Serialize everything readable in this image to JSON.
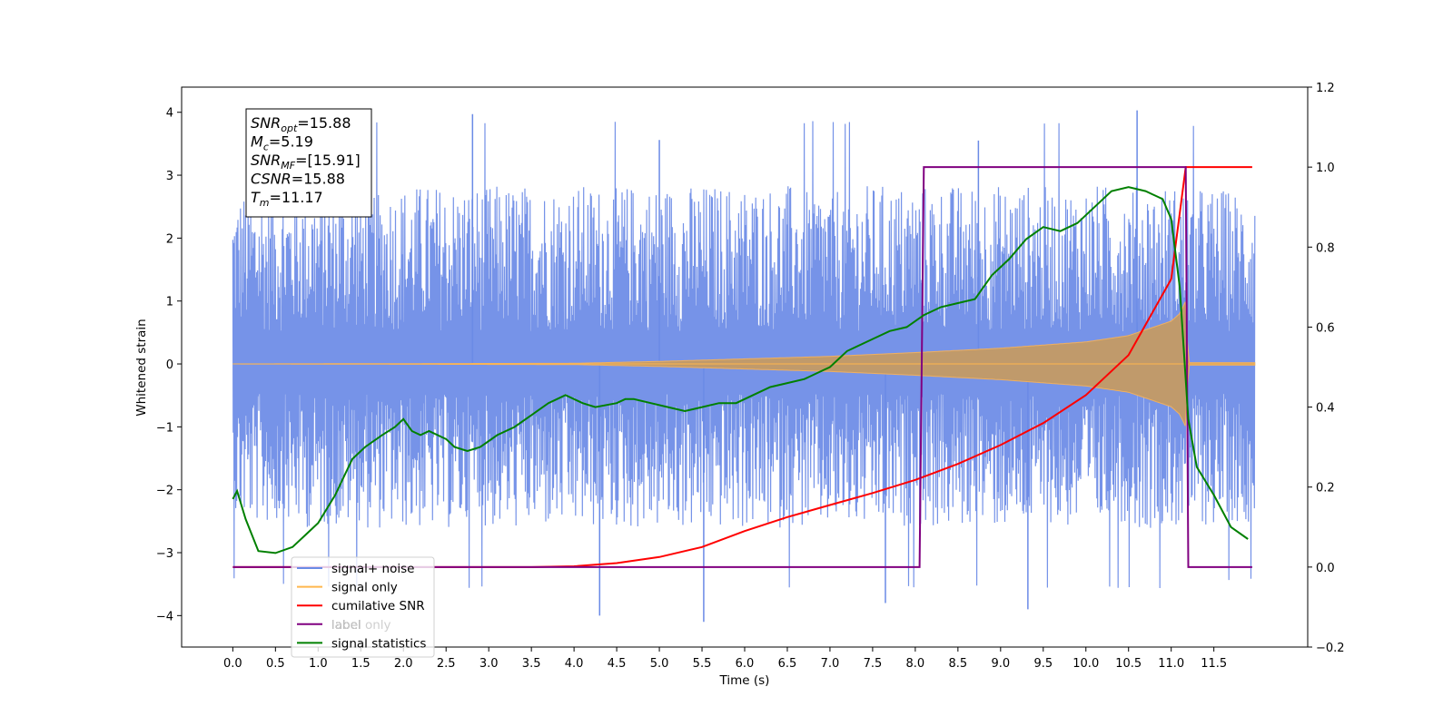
{
  "chart_data": {
    "type": "line",
    "xlabel": "Time (s)",
    "ylabel_left": "Whitened strain",
    "ylabel_right": "",
    "xlim": [
      -0.6,
      12.6
    ],
    "ylim_left": [
      -4.5,
      4.4
    ],
    "ylim_right": [
      -0.2,
      1.2
    ],
    "x_ticks": [
      "0.0",
      "0.5",
      "1.0",
      "1.5",
      "2.0",
      "2.5",
      "3.0",
      "3.5",
      "4.0",
      "4.5",
      "5.0",
      "5.5",
      "6.0",
      "6.5",
      "7.0",
      "7.5",
      "8.0",
      "8.5",
      "9.0",
      "9.5",
      "10.0",
      "10.5",
      "11.0",
      "11.5"
    ],
    "y_ticks_left": [
      "4",
      "3",
      "2",
      "1",
      "0",
      "−1",
      "−2",
      "−3",
      "−4"
    ],
    "y_ticks_right": [
      "1.2",
      "1.0",
      "0.8",
      "0.6",
      "0.4",
      "0.2",
      "0.0",
      "−0.2"
    ],
    "grid": false,
    "legend_position": "bottom-left",
    "annotation": {
      "lines": [
        {
          "sym": "SNR",
          "sub": "opt",
          "rest": "=15.88"
        },
        {
          "sym": "M",
          "sub": "c",
          "rest": "=5.19"
        },
        {
          "sym": "SNR",
          "sub": "MF",
          "rest": "=[15.91]"
        },
        {
          "sym": "CSNR",
          "sub": "",
          "rest": "=15.88"
        },
        {
          "sym": "T",
          "sub": "m",
          "rest": "=11.17"
        }
      ]
    },
    "series": [
      {
        "name": "signal+ noise",
        "axis": "left",
        "color": "#6a8ae6",
        "description_style": "noise band",
        "envelope_x": [
          0.0,
          1.0,
          2.0,
          3.0,
          4.0,
          5.0,
          6.0,
          7.0,
          8.0,
          9.0,
          10.0,
          11.0,
          12.0
        ],
        "envelope_upper": [
          2.5,
          2.6,
          2.6,
          2.6,
          2.6,
          2.6,
          2.6,
          2.6,
          2.6,
          2.6,
          2.6,
          2.6,
          2.5
        ],
        "envelope_lower": [
          -2.3,
          -2.4,
          -2.4,
          -2.4,
          -2.4,
          -2.4,
          -2.4,
          -2.4,
          -2.4,
          -2.4,
          -2.4,
          -2.4,
          -2.3
        ],
        "peaks_x": [
          2.81,
          5.0,
          8.74,
          10.6,
          4.3,
          5.52,
          9.32,
          7.65
        ],
        "peaks_y": [
          3.97,
          3.56,
          3.55,
          4.03,
          -4.0,
          -4.1,
          -3.9,
          -3.8
        ]
      },
      {
        "name": "signal only",
        "axis": "left",
        "color": "#ffb74d",
        "envelope_x": [
          0.0,
          4.0,
          5.0,
          6.0,
          7.0,
          8.0,
          9.0,
          10.0,
          10.5,
          11.0,
          11.1,
          11.17,
          11.2,
          12.0
        ],
        "envelope_amp": [
          0.0,
          0.01,
          0.04,
          0.08,
          0.12,
          0.18,
          0.25,
          0.35,
          0.45,
          0.68,
          0.8,
          1.0,
          0.02,
          0.02
        ]
      },
      {
        "name": "cumilative SNR",
        "axis": "right",
        "color": "#ff0000",
        "x": [
          0.0,
          3.5,
          4.0,
          4.5,
          5.0,
          5.5,
          6.0,
          6.5,
          7.0,
          7.5,
          8.0,
          8.5,
          9.0,
          9.5,
          10.0,
          10.5,
          11.0,
          11.17,
          11.95
        ],
        "values": [
          0.0,
          0.0,
          0.002,
          0.01,
          0.025,
          0.05,
          0.09,
          0.125,
          0.155,
          0.185,
          0.218,
          0.258,
          0.305,
          0.36,
          0.43,
          0.53,
          0.72,
          1.0,
          1.0
        ]
      },
      {
        "name": "label",
        "axis": "right",
        "color": "#800080",
        "x": [
          0.0,
          8.05,
          8.1,
          11.17,
          11.2,
          11.95
        ],
        "values": [
          0.0,
          0.0,
          1.0,
          1.0,
          0.0,
          0.0
        ]
      },
      {
        "name": "label only",
        "axis": "right",
        "color": "#d3d3d3",
        "hidden_behind_legend": true,
        "x": [],
        "values": []
      },
      {
        "name": "signal statistics",
        "axis": "right",
        "color": "#008000",
        "x": [
          0.0,
          0.05,
          0.15,
          0.3,
          0.5,
          0.7,
          0.85,
          1.0,
          1.2,
          1.4,
          1.55,
          1.75,
          1.9,
          2.0,
          2.1,
          2.2,
          2.3,
          2.5,
          2.6,
          2.75,
          2.9,
          3.1,
          3.3,
          3.5,
          3.7,
          3.8,
          3.9,
          4.1,
          4.25,
          4.5,
          4.6,
          4.7,
          4.9,
          5.1,
          5.3,
          5.5,
          5.7,
          5.9,
          6.1,
          6.3,
          6.5,
          6.7,
          6.9,
          7.0,
          7.2,
          7.5,
          7.7,
          7.9,
          8.1,
          8.3,
          8.5,
          8.7,
          8.9,
          9.1,
          9.3,
          9.5,
          9.7,
          9.9,
          10.1,
          10.3,
          10.5,
          10.7,
          10.9,
          11.0,
          11.1,
          11.2,
          11.3,
          11.5,
          11.7,
          11.9
        ],
        "values": [
          0.17,
          0.19,
          0.12,
          0.04,
          0.035,
          0.05,
          0.08,
          0.11,
          0.18,
          0.27,
          0.3,
          0.33,
          0.35,
          0.37,
          0.34,
          0.33,
          0.34,
          0.32,
          0.3,
          0.29,
          0.3,
          0.33,
          0.35,
          0.38,
          0.41,
          0.42,
          0.43,
          0.41,
          0.4,
          0.41,
          0.42,
          0.42,
          0.41,
          0.4,
          0.39,
          0.4,
          0.41,
          0.41,
          0.43,
          0.45,
          0.46,
          0.47,
          0.49,
          0.5,
          0.54,
          0.57,
          0.59,
          0.6,
          0.63,
          0.65,
          0.66,
          0.67,
          0.73,
          0.77,
          0.82,
          0.85,
          0.84,
          0.86,
          0.9,
          0.94,
          0.95,
          0.94,
          0.92,
          0.87,
          0.7,
          0.37,
          0.25,
          0.18,
          0.1,
          0.07
        ]
      }
    ]
  }
}
